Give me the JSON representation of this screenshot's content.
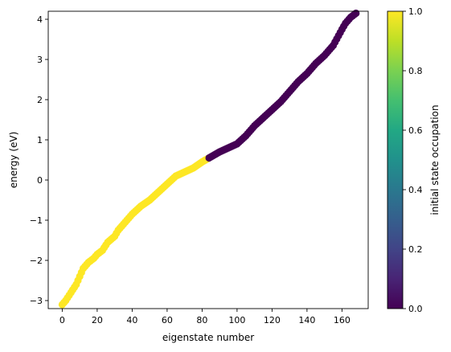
{
  "chart_data": {
    "type": "scatter",
    "xlabel": "eigenstate number",
    "ylabel": "energy (eV)",
    "xlim": [
      -8,
      175
    ],
    "ylim": [
      -3.2,
      4.2
    ],
    "xticks": [
      "0",
      "20",
      "40",
      "60",
      "80",
      "100",
      "120",
      "140",
      "160"
    ],
    "yticks": [
      "−3",
      "−2",
      "−1",
      "0",
      "1",
      "2",
      "3",
      "4"
    ],
    "grid": false,
    "colorbar": {
      "label": "initial state occupation",
      "range": [
        0,
        1
      ],
      "colormap": "viridis",
      "ticks": [
        "0.0",
        "0.2",
        "0.4",
        "0.6",
        "0.8",
        "1.0"
      ]
    },
    "colors": {
      "occupied": "#fde725",
      "unoccupied": "#440154"
    },
    "occupied_count": 84,
    "energy_curve": {
      "x": [
        0,
        2,
        5,
        8,
        10,
        12,
        15,
        18,
        20,
        23,
        26,
        30,
        32,
        35,
        38,
        40,
        45,
        50,
        55,
        60,
        65,
        70,
        75,
        80,
        84,
        86,
        90,
        95,
        100,
        105,
        110,
        115,
        120,
        125,
        130,
        135,
        140,
        145,
        150,
        155,
        160,
        162,
        165,
        168
      ],
      "y": [
        -3.1,
        -3.0,
        -2.8,
        -2.6,
        -2.4,
        -2.2,
        -2.05,
        -1.95,
        -1.85,
        -1.75,
        -1.55,
        -1.4,
        -1.25,
        -1.1,
        -0.95,
        -0.85,
        -0.65,
        -0.5,
        -0.3,
        -0.1,
        0.1,
        0.2,
        0.3,
        0.45,
        0.55,
        0.6,
        0.7,
        0.8,
        0.9,
        1.1,
        1.35,
        1.55,
        1.75,
        1.95,
        2.2,
        2.45,
        2.65,
        2.9,
        3.1,
        3.35,
        3.75,
        3.9,
        4.05,
        4.15
      ]
    }
  }
}
